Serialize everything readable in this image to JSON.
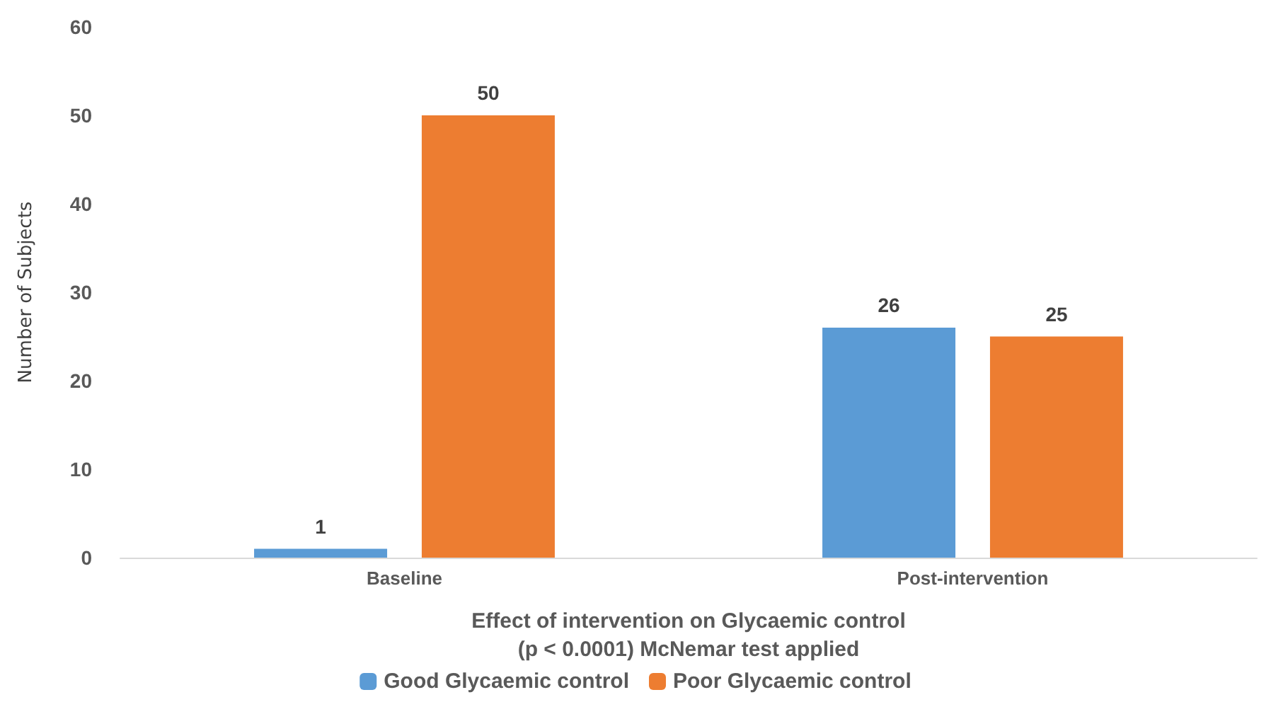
{
  "chart_data": {
    "type": "bar",
    "categories": [
      "Baseline",
      "Post-intervention"
    ],
    "series": [
      {
        "name": "Good Glycaemic control",
        "color": "#5b9bd5",
        "values": [
          1,
          26
        ]
      },
      {
        "name": "Poor Glycaemic control",
        "color": "#ed7d31",
        "values": [
          50,
          25
        ]
      }
    ],
    "xlabel": "Effect of intervention on Glycaemic control\n(p < 0.0001) McNemar test applied",
    "ylabel": "Number of Subjects",
    "ylim": [
      0,
      60
    ],
    "yticks": [
      0,
      10,
      20,
      30,
      40,
      50,
      60
    ],
    "data_labels": true,
    "grid": false,
    "legend": "bottom"
  }
}
